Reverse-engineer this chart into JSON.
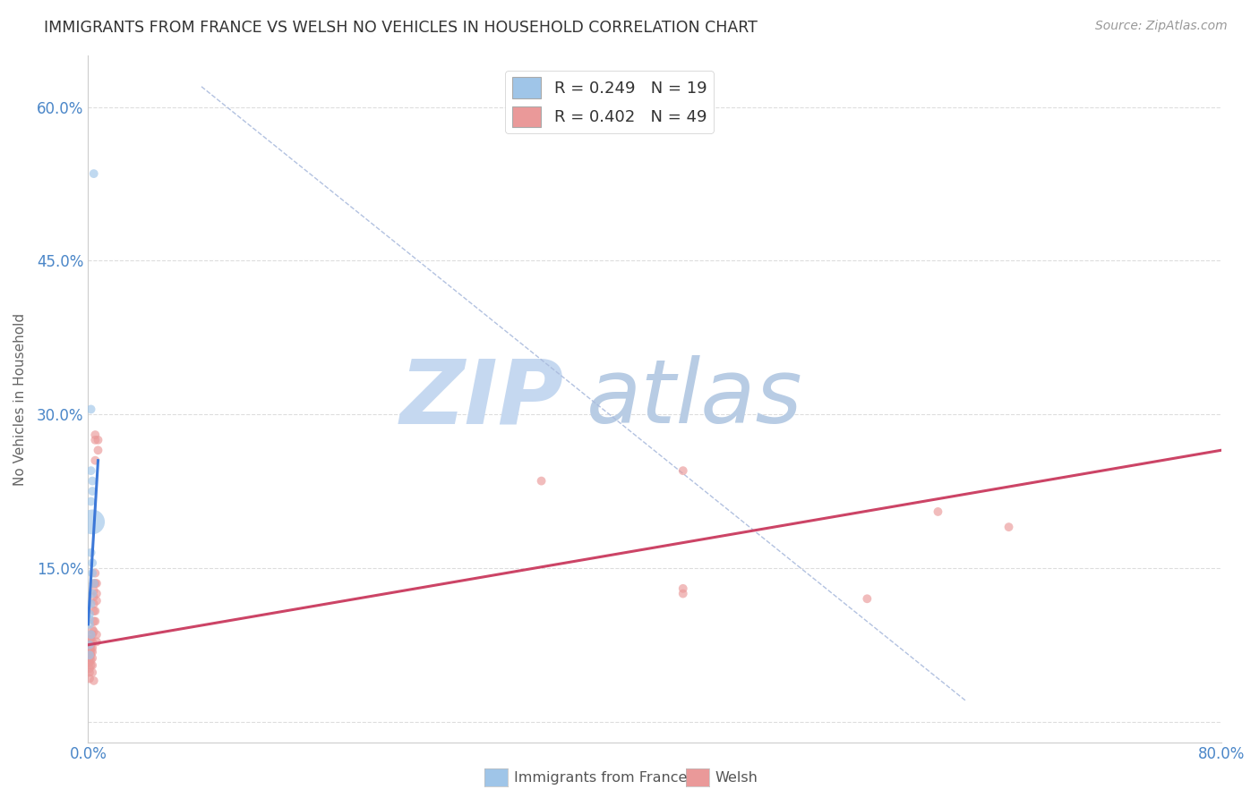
{
  "title": "IMMIGRANTS FROM FRANCE VS WELSH NO VEHICLES IN HOUSEHOLD CORRELATION CHART",
  "source": "Source: ZipAtlas.com",
  "ylabel": "No Vehicles in Household",
  "xlim": [
    0.0,
    0.8
  ],
  "ylim": [
    -0.02,
    0.65
  ],
  "blue_color": "#9fc5e8",
  "pink_color": "#ea9999",
  "blue_line_color": "#3c78d8",
  "pink_line_color": "#cc4466",
  "diag_color": "#aabbdd",
  "blue_scatter": [
    [
      0.004,
      0.535
    ],
    [
      0.002,
      0.305
    ],
    [
      0.002,
      0.245
    ],
    [
      0.003,
      0.235
    ],
    [
      0.003,
      0.225
    ],
    [
      0.002,
      0.215
    ],
    [
      0.003,
      0.195
    ],
    [
      0.002,
      0.165
    ],
    [
      0.003,
      0.155
    ],
    [
      0.003,
      0.145
    ],
    [
      0.004,
      0.135
    ],
    [
      0.003,
      0.125
    ],
    [
      0.002,
      0.115
    ],
    [
      0.001,
      0.105
    ],
    [
      0.001,
      0.1
    ],
    [
      0.001,
      0.095
    ],
    [
      0.002,
      0.085
    ],
    [
      0.001,
      0.075
    ],
    [
      0.001,
      0.065
    ]
  ],
  "blue_sizes": [
    50,
    50,
    50,
    50,
    50,
    50,
    400,
    50,
    50,
    50,
    50,
    50,
    50,
    50,
    50,
    50,
    50,
    50,
    50
  ],
  "pink_scatter": [
    [
      0.001,
      0.08
    ],
    [
      0.001,
      0.075
    ],
    [
      0.001,
      0.07
    ],
    [
      0.001,
      0.065
    ],
    [
      0.001,
      0.062
    ],
    [
      0.001,
      0.058
    ],
    [
      0.001,
      0.052
    ],
    [
      0.001,
      0.048
    ],
    [
      0.001,
      0.042
    ],
    [
      0.002,
      0.085
    ],
    [
      0.002,
      0.08
    ],
    [
      0.002,
      0.075
    ],
    [
      0.002,
      0.072
    ],
    [
      0.002,
      0.068
    ],
    [
      0.002,
      0.065
    ],
    [
      0.002,
      0.06
    ],
    [
      0.002,
      0.055
    ],
    [
      0.003,
      0.09
    ],
    [
      0.003,
      0.085
    ],
    [
      0.003,
      0.078
    ],
    [
      0.003,
      0.072
    ],
    [
      0.003,
      0.068
    ],
    [
      0.003,
      0.062
    ],
    [
      0.003,
      0.055
    ],
    [
      0.003,
      0.048
    ],
    [
      0.004,
      0.135
    ],
    [
      0.004,
      0.128
    ],
    [
      0.004,
      0.122
    ],
    [
      0.004,
      0.115
    ],
    [
      0.004,
      0.108
    ],
    [
      0.004,
      0.098
    ],
    [
      0.004,
      0.088
    ],
    [
      0.004,
      0.04
    ],
    [
      0.005,
      0.28
    ],
    [
      0.005,
      0.275
    ],
    [
      0.005,
      0.255
    ],
    [
      0.005,
      0.145
    ],
    [
      0.005,
      0.135
    ],
    [
      0.005,
      0.108
    ],
    [
      0.005,
      0.098
    ],
    [
      0.006,
      0.135
    ],
    [
      0.006,
      0.125
    ],
    [
      0.006,
      0.118
    ],
    [
      0.006,
      0.085
    ],
    [
      0.006,
      0.078
    ],
    [
      0.007,
      0.275
    ],
    [
      0.007,
      0.265
    ],
    [
      0.32,
      0.235
    ],
    [
      0.55,
      0.12
    ],
    [
      0.6,
      0.205
    ],
    [
      0.65,
      0.19
    ],
    [
      0.42,
      0.245
    ],
    [
      0.42,
      0.13
    ],
    [
      0.42,
      0.125
    ]
  ],
  "pink_sizes": [
    50,
    50,
    50,
    50,
    50,
    50,
    50,
    50,
    50,
    50,
    50,
    50,
    50,
    50,
    50,
    50,
    50,
    50,
    50,
    50,
    50,
    50,
    50,
    50,
    50,
    50,
    50,
    50,
    50,
    50,
    50,
    50,
    50,
    50,
    50,
    50,
    50,
    50,
    50,
    50,
    50,
    50,
    50,
    50,
    50,
    50,
    50,
    50,
    50,
    50,
    50,
    50,
    50,
    50
  ],
  "blue_line": {
    "x0": 0.0,
    "x1": 0.007,
    "y0": 0.095,
    "y1": 0.255
  },
  "pink_line": {
    "x0": 0.0,
    "x1": 0.8,
    "y0": 0.075,
    "y1": 0.265
  },
  "diag_line": {
    "x0": 0.08,
    "x1": 0.62,
    "y0": 0.62,
    "y1": 0.02
  },
  "watermark_zip": "ZIP",
  "watermark_atlas": "atlas",
  "watermark_color_zip": "#c5d8f0",
  "watermark_color_atlas": "#b8cce4",
  "background_color": "#ffffff",
  "grid_color": "#dddddd",
  "tick_color": "#4a86c8",
  "label_color": "#666666"
}
